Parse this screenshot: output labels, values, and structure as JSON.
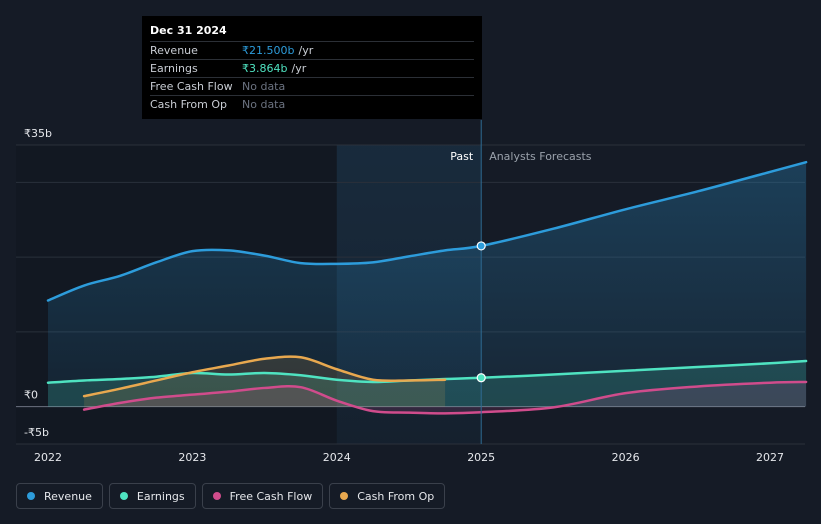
{
  "tooltip": {
    "date": "Dec 31 2024",
    "rows": [
      {
        "label": "Revenue",
        "value": "₹21.500b",
        "unit": "/yr"
      },
      {
        "label": "Earnings",
        "value": "₹3.864b",
        "unit": "/yr"
      },
      {
        "label": "Free Cash Flow",
        "value": "No data",
        "unit": ""
      },
      {
        "label": "Cash From Op",
        "value": "No data",
        "unit": ""
      }
    ]
  },
  "labels": {
    "past": "Past",
    "forecast": "Analysts Forecasts"
  },
  "legend": [
    {
      "label": "Revenue",
      "color": "#2d9cdb"
    },
    {
      "label": "Earnings",
      "color": "#4fe3c1"
    },
    {
      "label": "Free Cash Flow",
      "color": "#d04c8c"
    },
    {
      "label": "Cash From Op",
      "color": "#e8a84f"
    }
  ],
  "chart_data": {
    "type": "line",
    "title": "",
    "ylim": [
      -5,
      35
    ],
    "xlim": [
      2022,
      2027.25
    ],
    "y_ticks": [
      {
        "value": 35,
        "label": "₹35b"
      },
      {
        "value": 0,
        "label": "₹0"
      },
      {
        "value": -5,
        "label": "-₹5b"
      }
    ],
    "x_ticks": [
      2022,
      2023,
      2024,
      2025,
      2026,
      2027
    ],
    "gridlines": [
      35,
      30,
      20,
      10,
      0,
      -5
    ],
    "divider_x": 2025,
    "highlight_range": [
      2024,
      2025
    ],
    "series": [
      {
        "name": "Revenue",
        "color": "#2d9cdb",
        "points": [
          [
            2022,
            14.2
          ],
          [
            2022.25,
            16.2
          ],
          [
            2022.5,
            17.5
          ],
          [
            2022.75,
            19.3
          ],
          [
            2023,
            20.8
          ],
          [
            2023.25,
            20.9
          ],
          [
            2023.5,
            20.2
          ],
          [
            2023.75,
            19.2
          ],
          [
            2024,
            19.1
          ],
          [
            2024.25,
            19.3
          ],
          [
            2024.5,
            20.1
          ],
          [
            2024.75,
            20.9
          ],
          [
            2025,
            21.5
          ],
          [
            2025.5,
            23.8
          ],
          [
            2026,
            26.4
          ],
          [
            2026.5,
            28.8
          ],
          [
            2027,
            31.4
          ],
          [
            2027.25,
            32.7
          ]
        ]
      },
      {
        "name": "Earnings",
        "color": "#4fe3c1",
        "points": [
          [
            2022,
            3.2
          ],
          [
            2022.25,
            3.5
          ],
          [
            2022.5,
            3.7
          ],
          [
            2022.75,
            4.0
          ],
          [
            2023,
            4.5
          ],
          [
            2023.25,
            4.3
          ],
          [
            2023.5,
            4.5
          ],
          [
            2023.75,
            4.2
          ],
          [
            2024,
            3.6
          ],
          [
            2024.25,
            3.3
          ],
          [
            2024.5,
            3.5
          ],
          [
            2024.75,
            3.7
          ],
          [
            2025,
            3.86
          ],
          [
            2025.5,
            4.3
          ],
          [
            2026,
            4.8
          ],
          [
            2026.5,
            5.3
          ],
          [
            2027,
            5.8
          ],
          [
            2027.25,
            6.1
          ]
        ]
      },
      {
        "name": "Free Cash Flow",
        "color": "#d04c8c",
        "points": [
          [
            2022.25,
            -0.4
          ],
          [
            2022.5,
            0.5
          ],
          [
            2022.75,
            1.2
          ],
          [
            2023,
            1.6
          ],
          [
            2023.25,
            2.0
          ],
          [
            2023.5,
            2.5
          ],
          [
            2023.75,
            2.6
          ],
          [
            2024,
            0.8
          ],
          [
            2024.25,
            -0.6
          ],
          [
            2024.5,
            -0.8
          ],
          [
            2024.75,
            -0.9
          ],
          [
            2025,
            -0.75
          ],
          [
            2025.5,
            -0.1
          ],
          [
            2026,
            1.8
          ],
          [
            2026.5,
            2.7
          ],
          [
            2027,
            3.2
          ],
          [
            2027.25,
            3.3
          ]
        ]
      },
      {
        "name": "Cash From Op",
        "color": "#e8a84f",
        "points": [
          [
            2022.25,
            1.4
          ],
          [
            2022.5,
            2.4
          ],
          [
            2022.75,
            3.5
          ],
          [
            2023,
            4.6
          ],
          [
            2023.25,
            5.5
          ],
          [
            2023.5,
            6.4
          ],
          [
            2023.75,
            6.6
          ],
          [
            2024,
            5.0
          ],
          [
            2024.25,
            3.6
          ],
          [
            2024.5,
            3.5
          ],
          [
            2024.75,
            3.6
          ]
        ]
      }
    ]
  }
}
